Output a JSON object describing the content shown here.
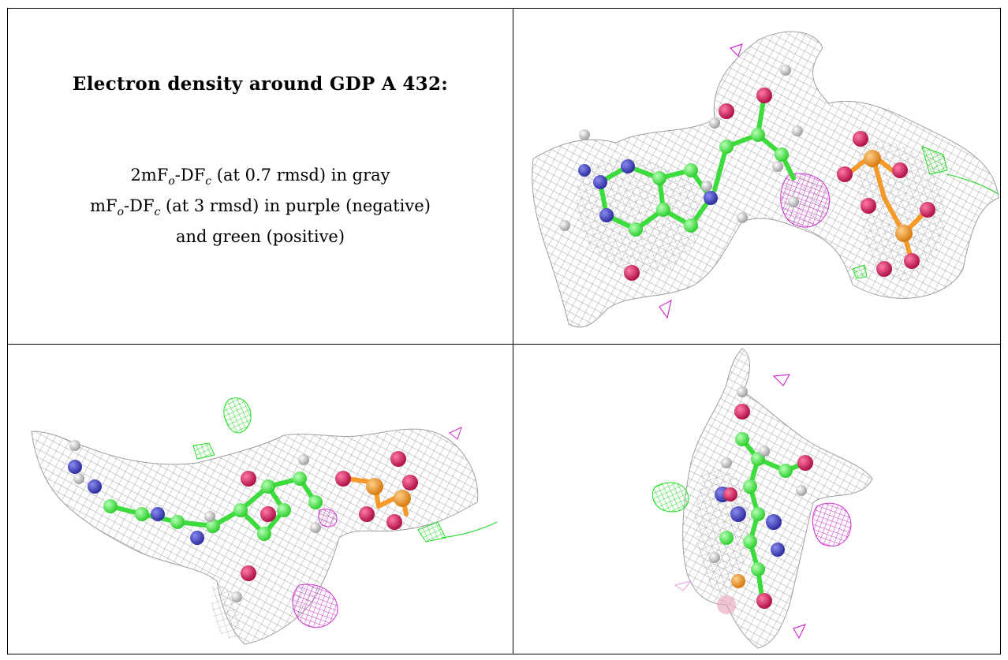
{
  "text_panel": {
    "title": "Electron density around GDP A 432:",
    "line1_prefix": "2mF",
    "line1_sub1": "o",
    "line1_mid": "-DF",
    "line1_sub2": "c",
    "line1_suffix": " (at 0.7 rmsd) in gray",
    "line2_prefix": "mF",
    "line2_sub1": "o",
    "line2_mid": "-DF",
    "line2_sub2": "c",
    "line2_suffix": " (at 3 rmsd) in purple (negative)",
    "line3": "and green (positive)"
  },
  "colors": {
    "mesh_gray": "#9a9a9a",
    "carbon_green": "#4cf04c",
    "nitrogen_blue": "#4a4ac8",
    "oxygen_red": "#d8205a",
    "phosphorus_orange": "#f59a2a",
    "hydrogen_white": "#e8e8e8",
    "negative_purple": "#cc33cc",
    "positive_green": "#22dd22"
  },
  "views": [
    {
      "label": "top-right view"
    },
    {
      "label": "bottom-left view"
    },
    {
      "label": "bottom-right view"
    }
  ]
}
